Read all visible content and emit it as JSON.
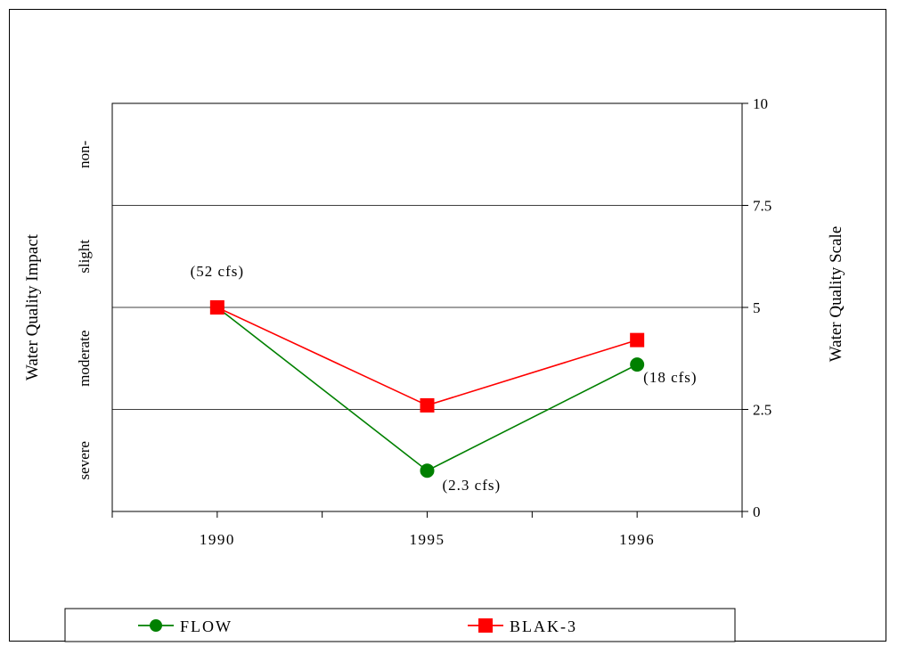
{
  "chart_data": {
    "type": "line",
    "categories": [
      "1990",
      "1995",
      "1996"
    ],
    "series": [
      {
        "name": "FLOW",
        "values": [
          5.0,
          1.0,
          3.6
        ],
        "color": "#008000",
        "marker": "circle"
      },
      {
        "name": "BLAK-3",
        "values": [
          5.0,
          2.6,
          4.2
        ],
        "color": "#ff0000",
        "marker": "square"
      }
    ],
    "ylim": [
      0,
      10
    ],
    "yticks": [
      "0",
      "2.5",
      "5",
      "7.5",
      "10"
    ],
    "ylabel_left": "Water Quality Impact",
    "ylabel_right": "Water Quality Scale",
    "impact_bands": [
      "severe",
      "moderate",
      "slight",
      "non-"
    ],
    "annotations": [
      {
        "text": "(52 cfs)",
        "category": "1990"
      },
      {
        "text": "(2.3 cfs)",
        "category": "1995"
      },
      {
        "text": "(18 cfs)",
        "category": "1996"
      }
    ],
    "gridlines_at": [
      2.5,
      5,
      7.5
    ],
    "legend_position": "bottom"
  }
}
